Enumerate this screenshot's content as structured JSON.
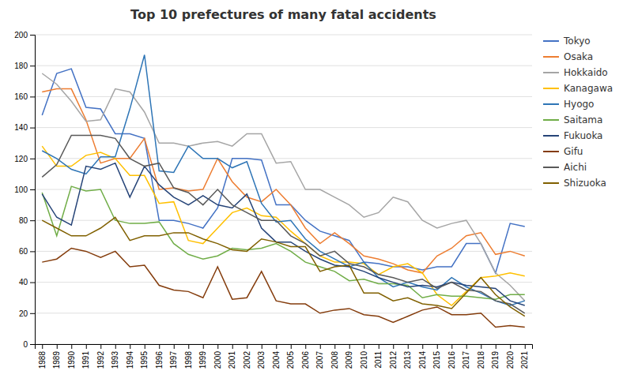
{
  "chart_data": {
    "type": "line",
    "title": "Top 10 prefectures of many fatal accidents",
    "x": [
      1988,
      1989,
      1990,
      1991,
      1992,
      1993,
      1994,
      1995,
      1996,
      1997,
      1998,
      1999,
      2000,
      2001,
      2002,
      2003,
      2004,
      2005,
      2006,
      2007,
      2008,
      2009,
      2010,
      2011,
      2012,
      2013,
      2014,
      2015,
      2016,
      2017,
      2018,
      2019,
      2020,
      2021
    ],
    "series": [
      {
        "name": "Tokyo",
        "color": "#4472C4",
        "values": [
          148,
          175,
          178,
          153,
          152,
          136,
          136,
          133,
          80,
          80,
          78,
          75,
          88,
          120,
          120,
          119,
          90,
          90,
          80,
          73,
          70,
          67,
          53,
          52,
          50,
          50,
          48,
          50,
          50,
          65,
          65,
          46,
          78,
          76
        ]
      },
      {
        "name": "Osaka",
        "color": "#ED7D31",
        "values": [
          163,
          165,
          165,
          145,
          117,
          120,
          120,
          133,
          100,
          101,
          99,
          100,
          120,
          105,
          95,
          92,
          100,
          90,
          75,
          65,
          72,
          65,
          57,
          55,
          52,
          48,
          46,
          57,
          62,
          70,
          72,
          58,
          60,
          57
        ]
      },
      {
        "name": "Hokkaido",
        "color": "#A5A5A5",
        "values": [
          175,
          168,
          157,
          144,
          145,
          165,
          163,
          150,
          130,
          130,
          128,
          130,
          131,
          128,
          136,
          136,
          117,
          118,
          100,
          100,
          95,
          90,
          82,
          85,
          95,
          92,
          80,
          75,
          78,
          80,
          65,
          46,
          38,
          28
        ]
      },
      {
        "name": "Kanagawa",
        "color": "#FFC000",
        "values": [
          128,
          115,
          115,
          122,
          124,
          120,
          109,
          109,
          91,
          92,
          67,
          65,
          75,
          85,
          88,
          83,
          82,
          73,
          65,
          57,
          53,
          53,
          52,
          45,
          50,
          52,
          46,
          32,
          25,
          34,
          43,
          44,
          46,
          44
        ]
      },
      {
        "name": "Hyogo",
        "color": "#2E75B6",
        "values": [
          125,
          120,
          113,
          110,
          121,
          121,
          152,
          187,
          112,
          111,
          128,
          120,
          120,
          114,
          118,
          91,
          79,
          80,
          68,
          60,
          55,
          50,
          53,
          43,
          37,
          40,
          37,
          35,
          43,
          37,
          33,
          28,
          25,
          28
        ]
      },
      {
        "name": "Saitama",
        "color": "#70AD47",
        "values": [
          98,
          70,
          102,
          99,
          100,
          80,
          78,
          78,
          79,
          65,
          58,
          55,
          57,
          62,
          61,
          62,
          65,
          60,
          53,
          50,
          47,
          41,
          42,
          39,
          39,
          38,
          30,
          32,
          31,
          31,
          30,
          29,
          32,
          32
        ]
      },
      {
        "name": "Fukuoka",
        "color": "#264478",
        "values": [
          97,
          82,
          77,
          115,
          113,
          117,
          95,
          115,
          103,
          95,
          90,
          96,
          90,
          88,
          97,
          75,
          66,
          66,
          60,
          55,
          51,
          50,
          47,
          43,
          40,
          37,
          38,
          37,
          40,
          38,
          37,
          36,
          28,
          25
        ]
      },
      {
        "name": "Gifu",
        "color": "#843C0C",
        "values": [
          53,
          55,
          62,
          60,
          56,
          60,
          50,
          51,
          38,
          35,
          34,
          30,
          50,
          29,
          30,
          47,
          28,
          26,
          26,
          20,
          22,
          23,
          19,
          18,
          14,
          18,
          22,
          24,
          19,
          19,
          20,
          11,
          12,
          11
        ]
      },
      {
        "name": "Aichi",
        "color": "#595959",
        "values": [
          108,
          116,
          135,
          135,
          135,
          133,
          120,
          115,
          117,
          101,
          98,
          90,
          100,
          90,
          85,
          80,
          80,
          70,
          65,
          57,
          60,
          52,
          50,
          45,
          43,
          40,
          42,
          36,
          40,
          35,
          34,
          28,
          26,
          20
        ]
      },
      {
        "name": "Shizuoka",
        "color": "#806000",
        "values": [
          80,
          75,
          70,
          70,
          75,
          82,
          67,
          70,
          70,
          72,
          72,
          68,
          65,
          61,
          60,
          68,
          66,
          63,
          63,
          47,
          50,
          51,
          33,
          33,
          28,
          30,
          26,
          25,
          23,
          33,
          43,
          32,
          24,
          18
        ]
      }
    ],
    "xlim": [
      1987.5,
      2021.5
    ],
    "xticks": [
      1988,
      1989,
      1990,
      1991,
      1992,
      1993,
      1994,
      1995,
      1996,
      1997,
      1998,
      1999,
      2000,
      2001,
      2002,
      2003,
      2004,
      2005,
      2006,
      2007,
      2008,
      2009,
      2010,
      2011,
      2012,
      2013,
      2014,
      2015,
      2016,
      2017,
      2018,
      2019,
      2020,
      2021
    ],
    "ylim": [
      0,
      200
    ],
    "yticks": [
      0,
      20,
      40,
      60,
      80,
      100,
      120,
      140,
      160,
      180,
      200
    ],
    "grid": true,
    "legend": "right"
  }
}
